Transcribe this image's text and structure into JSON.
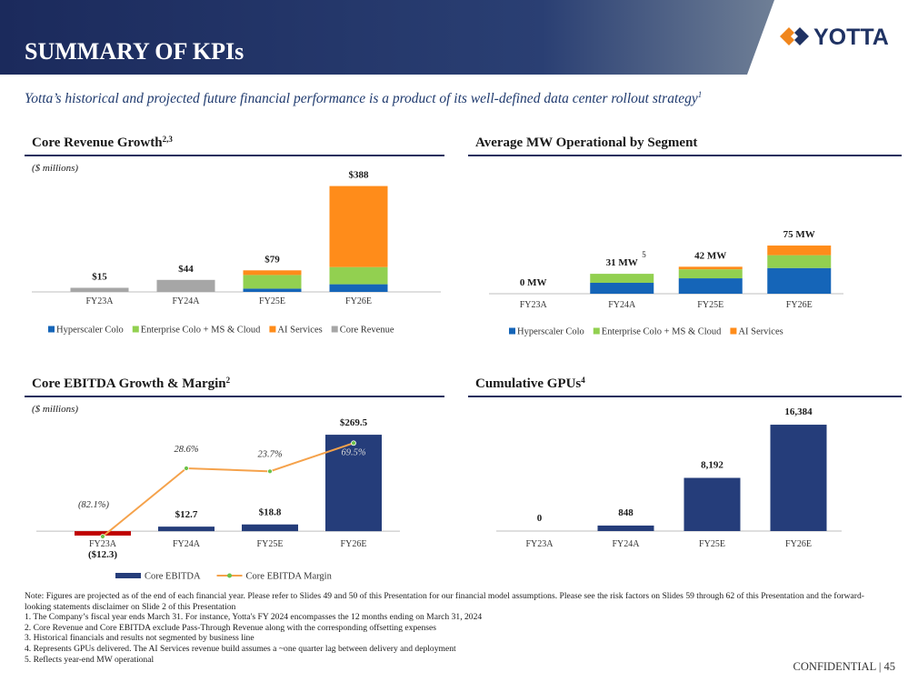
{
  "header": {
    "title": "SUMMARY OF KPIs",
    "logo": "YOTTA"
  },
  "subtitle": {
    "text": "Yotta’s historical and projected future financial performance is a product of its well-defined data center rollout strategy",
    "superscript": "1"
  },
  "chart_data": [
    {
      "type": "stacked_bar",
      "title": "Core Revenue Growth",
      "title_superscript": "2,3",
      "subtitle": "($ millions)",
      "categories": [
        "FY23A",
        "FY24A",
        "FY25E",
        "FY26E"
      ],
      "series": [
        {
          "name": "Hyperscaler Colo",
          "color": "#1565b8",
          "values": [
            null,
            null,
            12,
            28
          ]
        },
        {
          "name": "Enterprise Colo + MS & Cloud",
          "color": "#92d050",
          "values": [
            null,
            null,
            50,
            63
          ]
        },
        {
          "name": "AI Services",
          "color": "#ff8c1a",
          "values": [
            null,
            null,
            17,
            297
          ]
        },
        {
          "name": "Core Revenue",
          "color": "#a6a6a6",
          "values": [
            15,
            44,
            null,
            null
          ]
        }
      ],
      "totals": [
        15,
        44,
        79,
        388
      ],
      "total_labels": [
        "$15",
        "$44",
        "$79",
        "$388"
      ],
      "ylim": [
        0,
        400
      ]
    },
    {
      "type": "stacked_bar",
      "title": "Average MW Operational by Segment",
      "categories": [
        "FY23A",
        "FY24A",
        "FY25E",
        "FY26E"
      ],
      "series": [
        {
          "name": "Hyperscaler Colo",
          "color": "#1565b8",
          "values": [
            null,
            17,
            24,
            40
          ]
        },
        {
          "name": "Enterprise Colo + MS & Cloud",
          "color": "#92d050",
          "values": [
            null,
            14,
            14,
            20
          ]
        },
        {
          "name": "AI Services",
          "color": "#ff8c1a",
          "values": [
            null,
            null,
            4,
            15
          ]
        }
      ],
      "totals": [
        0,
        31,
        42,
        75
      ],
      "total_labels": [
        "0 MW",
        "31 MW",
        "42 MW",
        "75 MW"
      ],
      "annotation": "5",
      "ylim": [
        0,
        80
      ]
    },
    {
      "type": "combo",
      "title": "Core EBITDA Growth & Margin",
      "title_superscript": "2",
      "subtitle": "($ millions)",
      "categories": [
        "FY23A",
        "FY24A",
        "FY25E",
        "FY26E"
      ],
      "series": [
        {
          "name": "Core EBITDA",
          "color": "#253d7a",
          "negative_color": "#c00000",
          "values": [
            -12.3,
            12.7,
            18.8,
            269.5
          ],
          "value_labels": [
            "($12.3)",
            "$12.7",
            "$18.8",
            "$269.5"
          ]
        },
        {
          "name": "Core EBITDA Margin",
          "color": "#f5a24b",
          "marker_color": "#6cc24a",
          "axis": "y2",
          "values": [
            -82.1,
            28.6,
            23.7,
            69.5
          ],
          "value_labels": [
            "(82.1%)",
            "28.6%",
            "23.7%",
            "69.5%"
          ]
        }
      ],
      "ylim": [
        -20,
        290
      ],
      "y2lim": [
        -85,
        95
      ]
    },
    {
      "type": "bar",
      "title": "Cumulative GPUs",
      "title_superscript": "4",
      "categories": [
        "FY23A",
        "FY24A",
        "FY25E",
        "FY26E"
      ],
      "color": "#253d7a",
      "values": [
        0,
        848,
        8192,
        16384
      ],
      "value_labels": [
        "0",
        "848",
        "8,192",
        "16,384"
      ],
      "ylim": [
        0,
        18000
      ]
    }
  ],
  "notes": [
    "Note: Figures are projected as of the end of each financial year. Please refer to Slides 49 and 50 of this Presentation for our financial model assumptions. Please see the risk factors on Slides 59 through 62 of this Presentation and the forward-looking statements disclaimer on Slide 2 of this Presentation",
    "1.  The Company’s fiscal year ends March 31. For instance, Yotta's FY 2024 encompasses the 12 months ending on March 31, 2024",
    "2.  Core Revenue and Core EBITDA exclude Pass-Through Revenue along with the corresponding offsetting expenses",
    "3.  Historical financials and results not segmented by business line",
    "4.  Represents GPUs delivered. The AI Services revenue build assumes a ~one quarter lag between delivery and deployment",
    "5.  Reflects year-end MW operational"
  ],
  "footer": "CONFIDENTIAL | 45"
}
